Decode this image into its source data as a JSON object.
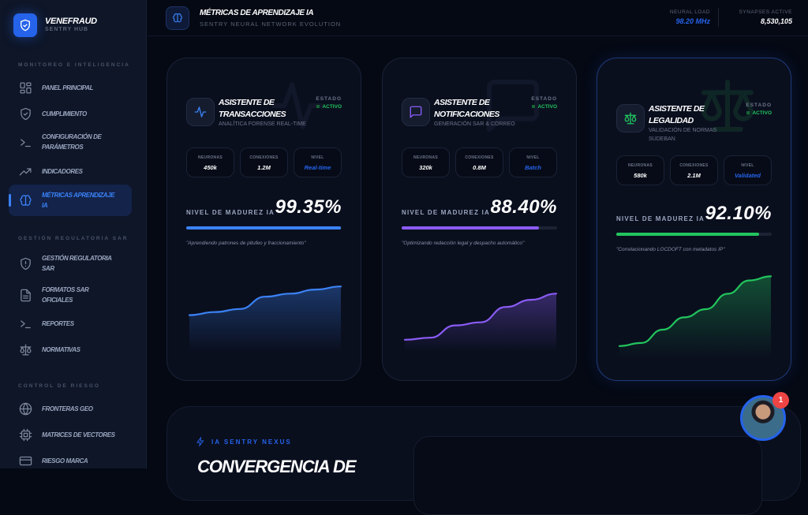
{
  "brand": {
    "name": "VENEFRAUD",
    "subtitle": "SENTRY HUB"
  },
  "sidebar": {
    "sections": [
      {
        "title": "MONITOREO E INTELIGENCIA",
        "items": [
          {
            "label": "PANEL PRINCIPAL",
            "icon": "grid-icon"
          },
          {
            "label": "CUMPLIMIENTO",
            "icon": "shield-check-icon"
          },
          {
            "label": "CONFIGURACIÓN DE PARÁMETROS",
            "icon": "terminal-icon"
          },
          {
            "label": "INDICADORES",
            "icon": "trending-up-icon"
          },
          {
            "label": "MÉTRICAS APRENDIZAJE IA",
            "icon": "brain-icon",
            "active": true
          }
        ]
      },
      {
        "title": "GESTIÓN REGULATORIA SAR",
        "items": [
          {
            "label": "GESTIÓN REGULATORIA SAR",
            "icon": "shield-alert-icon"
          },
          {
            "label": "FORMATOS SAR OFICIALES",
            "icon": "file-icon"
          },
          {
            "label": "REPORTES",
            "icon": "terminal-icon"
          },
          {
            "label": "NORMATIVAS",
            "icon": "scale-icon"
          }
        ]
      },
      {
        "title": "CONTROL DE RIESGO",
        "items": [
          {
            "label": "FRONTERAS GEO",
            "icon": "globe-icon"
          },
          {
            "label": "MATRICES DE VECTORES",
            "icon": "cpu-icon"
          },
          {
            "label": "RIESGO MARCA",
            "icon": "card-icon"
          }
        ]
      }
    ]
  },
  "header": {
    "title": "MÉTRICAS DE APRENDIZAJE IA",
    "subtitle": "SENTRY NEURAL NETWORK EVOLUTION",
    "neural_load_label": "NEURAL LOAD",
    "neural_load": "98.20 MHz",
    "synapses_label": "SYNAPSES ACTIVE",
    "synapses": "8,530,105"
  },
  "cards": [
    {
      "title": "ASISTENTE DE TRANSACCIONES",
      "subtitle": "ANALÍTICA FORENSE REAL-TIME",
      "status_label": "ESTADO",
      "status": "ACTIVO",
      "neurons_label": "NEURONAS",
      "neurons": "450k",
      "connections_label": "CONEXIONES",
      "connections": "1.2M",
      "level_label": "NIVEL",
      "level": "Real-time",
      "maturity_label": "NIVEL DE MADUREZ IA",
      "maturity": "99.35%",
      "maturity_value": 99.35,
      "quote": "\"Aprendiendo patrones de pitufeo y fraccionamiento\"",
      "color": "#3b82f6",
      "icon": "activity-icon",
      "trend": [
        28,
        31,
        34,
        46,
        49,
        53,
        56
      ]
    },
    {
      "title": "ASISTENTE DE NOTIFICACIONES",
      "subtitle": "GENERACIÓN SAR & CORREO",
      "status_label": "ESTADO",
      "status": "ACTIVO",
      "neurons_label": "NEURONAS",
      "neurons": "320k",
      "connections_label": "CONEXIONES",
      "connections": "0.8M",
      "level_label": "NIVEL",
      "level": "Batch",
      "maturity_label": "NIVEL DE MADUREZ IA",
      "maturity": "88.40%",
      "maturity_value": 88.4,
      "quote": "\"Optimizando redacción legal y despacho automático\"",
      "color": "#8b5cf6",
      "icon": "message-icon",
      "trend": [
        4,
        6,
        18,
        21,
        36,
        43,
        49
      ]
    },
    {
      "title": "ASISTENTE DE LEGALIDAD",
      "subtitle": "VALIDACIÓN DE NORMAS SUDEBAN",
      "status_label": "ESTADO",
      "status": "ACTIVO",
      "neurons_label": "NEURONAS",
      "neurons": "580k",
      "connections_label": "CONEXIONES",
      "connections": "2.1M",
      "level_label": "NIVEL",
      "level": "Validated",
      "maturity_label": "NIVEL DE MADUREZ IA",
      "maturity": "92.10%",
      "maturity_value": 92.1,
      "quote": "\"Correlacionando LOCDOFT con metadatos IP\"",
      "color": "#22c55e",
      "icon": "scale-icon",
      "trend": [
        4,
        7,
        20,
        32,
        40,
        55,
        68,
        72
      ]
    }
  ],
  "nexus": {
    "label": "IA SENTRY NEXUS",
    "heading": "CONVERGENCIA DE"
  },
  "notifications": {
    "count": "1"
  }
}
